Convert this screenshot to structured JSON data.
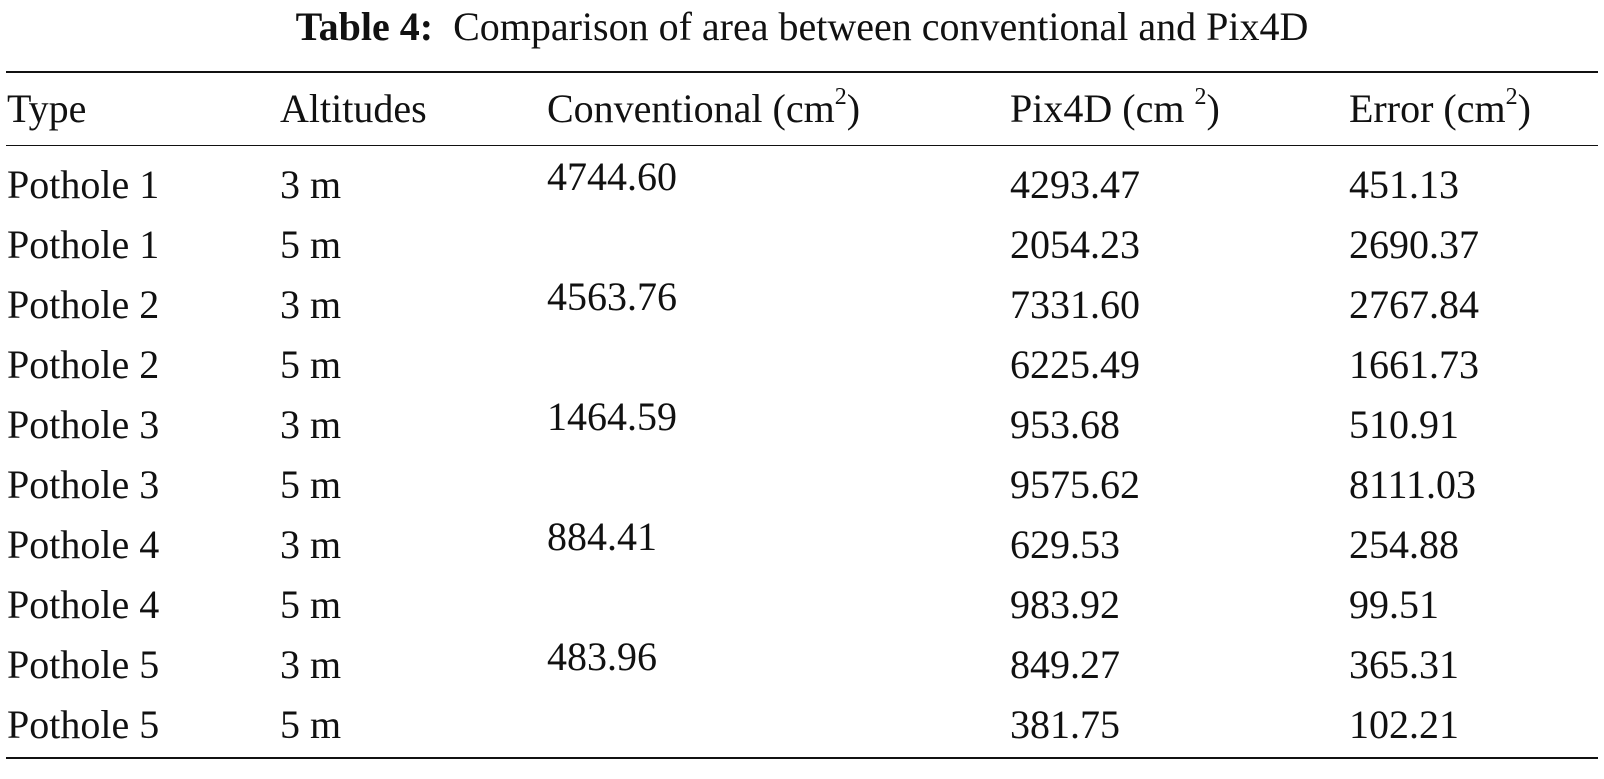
{
  "caption": {
    "label": "Table 4:",
    "text": "Comparison of area between conventional and Pix4D"
  },
  "headers": {
    "type": "Type",
    "altitudes": "Altitudes",
    "conventional": {
      "pre": "Conventional (cm",
      "sup": "2",
      "post": ")"
    },
    "pix4d": {
      "pre": "Pix4D (cm ",
      "sup": "2",
      "post": ")"
    },
    "error": {
      "pre": "Error (cm",
      "sup": "2",
      "post": ")"
    }
  },
  "rows": [
    {
      "type": "Pothole 1",
      "altitude": "3 m",
      "conventional": "4744.60",
      "pix4d": "4293.47",
      "error": "451.13"
    },
    {
      "type": "Pothole 1",
      "altitude": "5 m",
      "conventional": "",
      "pix4d": "2054.23",
      "error": "2690.37"
    },
    {
      "type": "Pothole 2",
      "altitude": "3 m",
      "conventional": "4563.76",
      "pix4d": "7331.60",
      "error": "2767.84"
    },
    {
      "type": "Pothole 2",
      "altitude": "5 m",
      "conventional": "",
      "pix4d": "6225.49",
      "error": "1661.73"
    },
    {
      "type": "Pothole 3",
      "altitude": "3 m",
      "conventional": "1464.59",
      "pix4d": "953.68",
      "error": "510.91"
    },
    {
      "type": "Pothole 3",
      "altitude": "5 m",
      "conventional": "",
      "pix4d": "9575.62",
      "error": "8111.03"
    },
    {
      "type": "Pothole 4",
      "altitude": "3 m",
      "conventional": "884.41",
      "pix4d": "629.53",
      "error": "254.88"
    },
    {
      "type": "Pothole 4",
      "altitude": "5 m",
      "conventional": "",
      "pix4d": "983.92",
      "error": "99.51"
    },
    {
      "type": "Pothole 5",
      "altitude": "3 m",
      "conventional": "483.96",
      "pix4d": "849.27",
      "error": "365.31"
    },
    {
      "type": "Pothole 5",
      "altitude": "5 m",
      "conventional": "",
      "pix4d": "381.75",
      "error": "102.21"
    }
  ]
}
